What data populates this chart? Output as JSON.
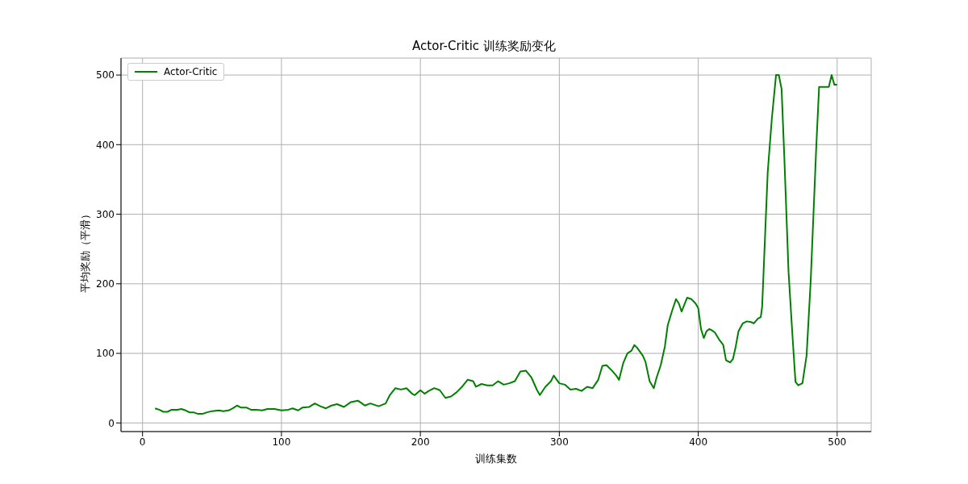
{
  "chart_data": {
    "type": "line",
    "title": "Actor-Critic 训练奖励变化",
    "xlabel": "训练集数",
    "ylabel": "平均奖励（平滑）",
    "xlim": [
      -15.5,
      524.5
    ],
    "ylim": [
      -12.4,
      524.4
    ],
    "xticks": [
      0,
      100,
      200,
      300,
      400,
      500
    ],
    "yticks": [
      0,
      100,
      200,
      300,
      400,
      500
    ],
    "grid": true,
    "legend": "top left",
    "marker": "none",
    "line_style": "solid",
    "x": [
      9,
      12,
      15,
      18,
      21,
      25,
      28,
      31,
      34,
      37,
      40,
      43,
      46,
      50,
      55,
      58,
      62,
      65,
      68,
      71,
      75,
      78,
      82,
      86,
      90,
      95,
      100,
      105,
      108,
      112,
      115,
      120,
      124,
      128,
      132,
      136,
      140,
      145,
      150,
      155,
      158,
      160,
      164,
      170,
      175,
      178,
      182,
      186,
      190,
      194,
      196,
      200,
      203,
      206,
      210,
      214,
      218,
      222,
      226,
      230,
      234,
      238,
      240,
      244,
      248,
      252,
      256,
      260,
      264,
      268,
      272,
      276,
      280,
      284,
      286,
      290,
      294,
      296,
      300,
      304,
      308,
      312,
      316,
      320,
      324,
      328,
      331,
      334,
      338,
      341,
      343,
      346,
      349,
      352,
      354,
      356,
      360,
      362,
      365,
      368,
      370,
      373,
      376,
      378,
      381,
      384,
      386,
      388,
      390,
      392,
      395,
      398,
      400,
      402,
      404,
      406,
      408,
      410,
      412,
      415,
      418,
      420,
      423,
      425,
      427,
      429,
      432,
      435,
      438,
      440,
      443,
      445,
      446,
      450,
      453,
      456,
      458,
      460,
      462,
      465,
      468,
      470,
      472,
      475,
      478,
      481,
      485,
      487,
      490,
      494,
      496,
      498,
      500
    ],
    "series": [
      {
        "name": "Actor-Critic",
        "color": "#008000",
        "values": [
          21,
          19,
          16,
          16,
          19,
          19,
          20,
          18,
          15,
          15,
          13,
          13,
          15,
          17,
          18,
          17,
          18,
          21,
          25,
          22,
          22,
          19,
          19,
          18,
          20,
          20,
          18,
          19,
          21,
          18,
          22,
          23,
          28,
          24,
          21,
          25,
          27,
          23,
          30,
          32,
          28,
          25,
          28,
          24,
          28,
          40,
          50,
          48,
          50,
          42,
          40,
          47,
          42,
          46,
          50,
          47,
          36,
          38,
          44,
          52,
          62,
          60,
          52,
          56,
          54,
          54,
          60,
          55,
          57,
          60,
          74,
          75,
          65,
          47,
          40,
          52,
          60,
          68,
          57,
          55,
          48,
          49,
          46,
          52,
          50,
          62,
          82,
          83,
          75,
          68,
          62,
          86,
          100,
          104,
          112,
          108,
          97,
          88,
          60,
          50,
          65,
          83,
          110,
          140,
          160,
          178,
          172,
          160,
          170,
          180,
          178,
          172,
          165,
          135,
          122,
          132,
          135,
          133,
          130,
          120,
          112,
          90,
          87,
          92,
          110,
          132,
          143,
          146,
          145,
          143,
          150,
          152,
          167,
          360,
          438,
          500,
          500,
          480,
          380,
          217,
          120,
          59,
          54,
          57,
          97,
          206,
          399,
          483,
          483,
          483,
          500,
          486,
          486
        ]
      }
    ]
  }
}
